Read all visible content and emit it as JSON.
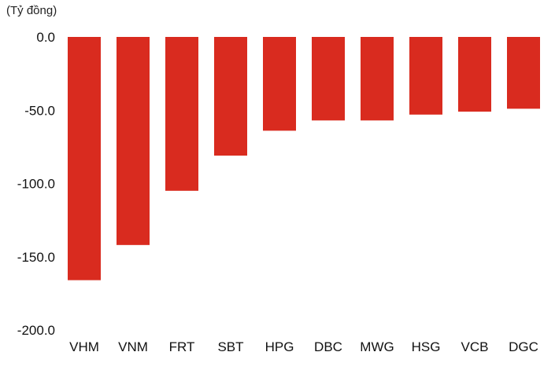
{
  "chart_data": {
    "type": "bar",
    "unit_label": "(Tỷ đồng)",
    "categories": [
      "VHM",
      "VNM",
      "FRT",
      "SBT",
      "HPG",
      "DBC",
      "MWG",
      "HSG",
      "VCB",
      "DGC"
    ],
    "values": [
      -166,
      -142,
      -105,
      -81,
      -64,
      -57,
      -57,
      -53,
      -51,
      -49
    ],
    "y_ticks": [
      "0.0",
      "-50.0",
      "-100.0",
      "-150.0",
      "-200.0"
    ],
    "y_tick_values": [
      0,
      -50,
      -100,
      -150,
      -200
    ],
    "ylim": [
      -200,
      0
    ],
    "grid": false,
    "bar_color": "#d92b1f"
  }
}
